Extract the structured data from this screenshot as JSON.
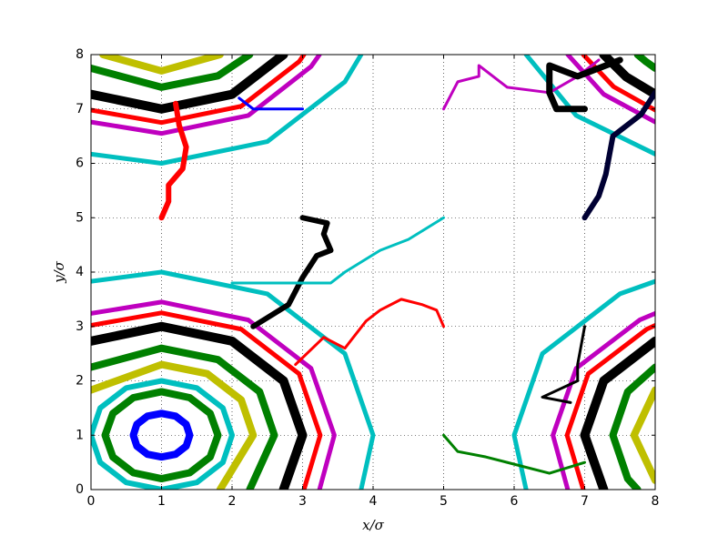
{
  "chart_data": {
    "type": "line",
    "xlabel": "x/σ",
    "ylabel": "y/σ",
    "xlim": [
      0,
      8
    ],
    "ylim": [
      0,
      8
    ],
    "xticks": [
      0,
      1,
      2,
      3,
      4,
      5,
      6,
      7,
      8
    ],
    "yticks": [
      0,
      1,
      2,
      3,
      4,
      5,
      6,
      7,
      8
    ],
    "grid": true,
    "series": [
      {
        "color": "#00bfbf",
        "linewidth": 5,
        "x": [
          0,
          1,
          2.5,
          3.6,
          3.83,
          null,
          3.83,
          4,
          3.6,
          2.5,
          1,
          0,
          null,
          8,
          7.5,
          6.4,
          6,
          6.17,
          null,
          6.17,
          6.88,
          8
        ],
        "values": [
          6.17,
          6,
          6.4,
          7.5,
          8,
          null,
          0,
          1,
          2.5,
          3.6,
          4,
          3.83,
          null,
          3.83,
          3.6,
          2.5,
          1,
          0,
          null,
          8,
          6.88,
          6.17
        ]
      },
      {
        "color": "#bf00bf",
        "linewidth": 5,
        "x": [
          0,
          1,
          2.23,
          3.12,
          3.24,
          null,
          3.24,
          3.45,
          3.12,
          2.23,
          1,
          0,
          null,
          8,
          7.78,
          6.88,
          6.55,
          6.76,
          null,
          6.76,
          7.27,
          8
        ],
        "values": [
          6.76,
          6.55,
          6.88,
          7.78,
          8,
          null,
          0,
          1,
          2.23,
          3.12,
          3.45,
          3.24,
          null,
          3.24,
          3.12,
          2.23,
          1,
          0,
          null,
          8,
          7.27,
          6.76
        ]
      },
      {
        "color": "#ff0000",
        "linewidth": 5,
        "x": [
          0,
          1,
          2.13,
          2.95,
          3.02,
          null,
          3.02,
          3.25,
          2.95,
          2.13,
          1,
          0,
          null,
          8,
          7.88,
          7.05,
          6.75,
          6.98,
          null,
          6.98,
          7.41,
          8
        ],
        "values": [
          6.98,
          6.75,
          7.05,
          7.87,
          8,
          null,
          0,
          1,
          2.13,
          2.95,
          3.25,
          3.02,
          null,
          3.02,
          2.95,
          2.13,
          1,
          0,
          null,
          8,
          7.41,
          6.98
        ]
      },
      {
        "color": "#000000",
        "linewidth": 10,
        "x": [
          0,
          1,
          2,
          2.73,
          null,
          2.73,
          3,
          2.73,
          2,
          1,
          0,
          null,
          8,
          7.27,
          7,
          7.27,
          null,
          7.27,
          7.59,
          8
        ],
        "values": [
          7.27,
          7,
          7.27,
          8,
          null,
          0,
          1,
          2,
          2.73,
          3,
          2.73,
          null,
          2.73,
          2,
          1,
          0,
          null,
          8,
          7.59,
          7.27
        ]
      },
      {
        "color": "#008000",
        "linewidth": 8,
        "x": [
          0,
          1,
          1.8,
          2.25,
          null,
          2.25,
          2.6,
          2.39,
          1.8,
          1,
          0,
          null,
          8,
          7.61,
          7.4,
          7.61,
          7.75,
          null,
          7.75,
          7.87,
          8
        ],
        "values": [
          7.75,
          7.4,
          7.61,
          8,
          null,
          0,
          1,
          1.8,
          2.39,
          2.6,
          2.25,
          null,
          2.25,
          1.8,
          1,
          0.2,
          0,
          null,
          8,
          7.87,
          7.75
        ]
      },
      {
        "color": "#bfbf00",
        "linewidth": 8,
        "x": [
          0.17,
          1,
          1.83,
          null,
          1.83,
          2.3,
          2.13,
          1.65,
          1,
          0,
          null,
          8,
          7.7,
          8
        ],
        "values": [
          8,
          7.7,
          8,
          null,
          0,
          1,
          1.65,
          2.13,
          2.3,
          1.83,
          null,
          1.83,
          1,
          0.17
        ]
      },
      {
        "color": "#00bfbf",
        "linewidth": 6,
        "x": [
          2,
          1.87,
          1.5,
          1,
          0.5,
          0.13,
          0,
          0.13,
          0.5,
          1,
          1.5,
          1.87,
          2
        ],
        "values": [
          1,
          1.5,
          1.87,
          2,
          1.87,
          1.5,
          1,
          0.5,
          0.13,
          0,
          0.13,
          0.5,
          1
        ]
      },
      {
        "color": "#008000",
        "linewidth": 8,
        "x": [
          1.8,
          1.69,
          1.4,
          1,
          0.6,
          0.31,
          0.2,
          0.31,
          0.6,
          1,
          1.4,
          1.69,
          1.8
        ],
        "values": [
          1,
          1.4,
          1.69,
          1.8,
          1.69,
          1.4,
          1,
          0.6,
          0.31,
          0.2,
          0.31,
          0.6,
          1
        ]
      },
      {
        "color": "#0000ff",
        "linewidth": 8,
        "x": [
          1.4,
          1.35,
          1.2,
          1,
          0.8,
          0.65,
          0.6,
          0.65,
          0.8,
          1,
          1.2,
          1.35,
          1.4
        ],
        "values": [
          1,
          1.2,
          1.35,
          1.4,
          1.35,
          1.2,
          1,
          0.8,
          0.65,
          0.6,
          0.65,
          0.8,
          1
        ]
      },
      {
        "color": "#ff0000",
        "linewidth": 6,
        "x": [
          1,
          1.1,
          1.1,
          1.3,
          1.35,
          1.25,
          1.2
        ],
        "values": [
          5,
          5.3,
          5.6,
          5.9,
          6.3,
          6.7,
          7.1
        ]
      },
      {
        "color": "#000000",
        "linewidth": 6,
        "x": [
          3,
          3.35,
          3.3,
          3.4,
          3.2,
          3,
          2.8,
          2.3
        ],
        "values": [
          5,
          4.9,
          4.7,
          4.4,
          4.3,
          3.9,
          3.4,
          3
        ]
      },
      {
        "color": "#00bfbf",
        "linewidth": 3,
        "x": [
          5,
          4.5,
          4.1,
          3.6,
          3.4,
          2
        ],
        "values": [
          5,
          4.6,
          4.4,
          4,
          3.8,
          3.8
        ]
      },
      {
        "color": "#ff0000",
        "linewidth": 3,
        "x": [
          5,
          4.9,
          4.7,
          4.4,
          4.1,
          3.9,
          3.6,
          3.3,
          2.9
        ],
        "values": [
          3,
          3.3,
          3.4,
          3.5,
          3.3,
          3.1,
          2.6,
          2.8,
          2.3
        ]
      },
      {
        "color": "#008000",
        "linewidth": 3,
        "x": [
          5,
          5.2,
          5.6,
          5.9,
          6.5,
          7
        ],
        "values": [
          1,
          0.7,
          0.6,
          0.5,
          0.3,
          0.5
        ]
      },
      {
        "color": "#000000",
        "linewidth": 3,
        "x": [
          7,
          6.9,
          6.9,
          6.4,
          6.8
        ],
        "values": [
          3,
          2.3,
          2,
          1.7,
          1.6
        ]
      },
      {
        "color": "#000033",
        "linewidth": 6,
        "x": [
          7,
          7.2,
          7.3,
          7.4,
          7.8,
          8
        ],
        "values": [
          5,
          5.4,
          5.8,
          6.5,
          6.9,
          7.3
        ]
      },
      {
        "color": "#bf00bf",
        "linewidth": 3,
        "x": [
          5,
          5.2,
          5.5,
          5.5,
          5.9,
          6.5,
          6.9,
          7.2
        ],
        "values": [
          7,
          7.5,
          7.6,
          7.8,
          7.4,
          7.3,
          7.6,
          7.9
        ]
      },
      {
        "color": "#000000",
        "linewidth": 7,
        "x": [
          7,
          6.6,
          6.5,
          6.5,
          6.9,
          7.5
        ],
        "values": [
          7,
          7,
          7.3,
          7.8,
          7.6,
          7.9
        ]
      },
      {
        "color": "#0000ff",
        "linewidth": 3,
        "x": [
          2.1,
          2.3,
          2.8,
          3
        ],
        "values": [
          7.2,
          7,
          7,
          7
        ]
      }
    ]
  }
}
